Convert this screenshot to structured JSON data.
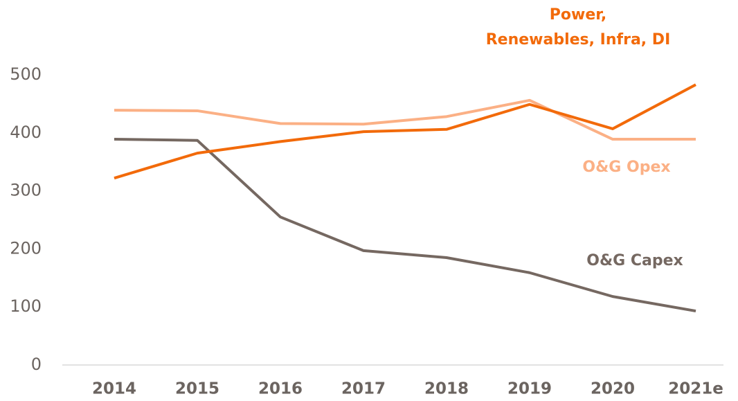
{
  "chart_data": {
    "type": "line",
    "categories": [
      "2014",
      "2015",
      "2016",
      "2017",
      "2018",
      "2019",
      "2020",
      "2021e"
    ],
    "series": [
      {
        "name": "O&G Capex",
        "color": "#756861",
        "values": [
          389,
          387,
          255,
          197,
          185,
          159,
          118,
          93
        ]
      },
      {
        "name": "O&G Opex",
        "color": "#fbb085",
        "values": [
          439,
          438,
          416,
          415,
          428,
          456,
          389,
          389
        ]
      },
      {
        "name": "Power, Renewables, Infra, DI",
        "color": "#f26a0a",
        "values": [
          322,
          365,
          385,
          402,
          406,
          449,
          407,
          483
        ]
      }
    ],
    "ylim": [
      0,
      500
    ],
    "yticks": [
      0,
      100,
      200,
      300,
      400,
      500
    ],
    "grid": false
  }
}
